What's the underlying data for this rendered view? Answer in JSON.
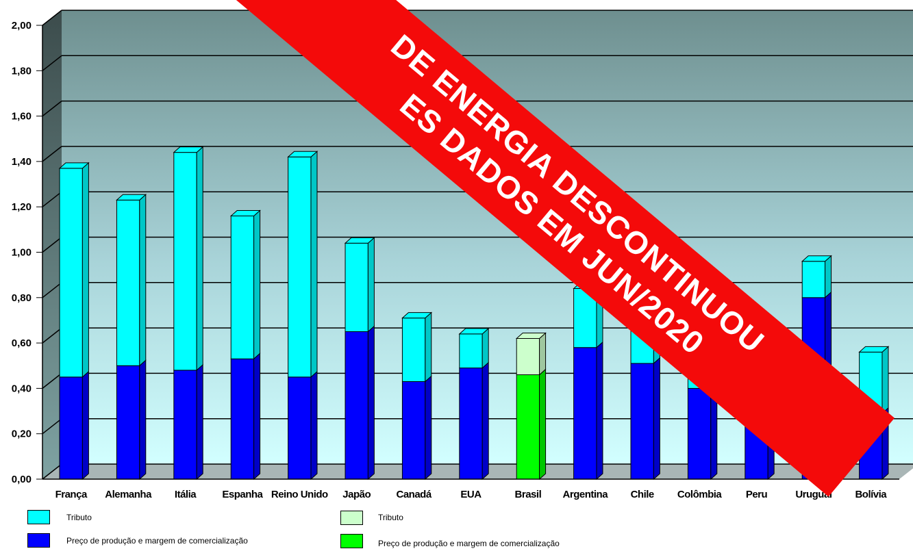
{
  "chart_data": {
    "type": "bar",
    "stacked": true,
    "three_d": true,
    "categories": [
      "França",
      "Alemanha",
      "Itália",
      "Espanha",
      "Reino Unido",
      "Japão",
      "Canadá",
      "EUA",
      "Brasil",
      "Argentina",
      "Chile",
      "Colômbia",
      "Peru",
      "Uruguai",
      "Bolívia"
    ],
    "series": [
      {
        "name": "Preço de produção e margem de comercialização",
        "values": [
          0.45,
          0.5,
          0.48,
          0.53,
          0.45,
          0.65,
          0.43,
          0.49,
          0.46,
          0.58,
          0.51,
          0.4,
          0.35,
          0.8,
          0.29
        ]
      },
      {
        "name": "Tributo",
        "values": [
          0.92,
          0.73,
          0.96,
          0.63,
          0.97,
          0.39,
          0.28,
          0.15,
          0.16,
          0.26,
          0.19,
          0.09,
          0.15,
          0.16,
          0.27
        ]
      }
    ],
    "highlight_category": "Brasil",
    "ylim": [
      0,
      2.0
    ],
    "yticks": [
      "0,00",
      "0,20",
      "0,40",
      "0,60",
      "0,80",
      "1,00",
      "1,20",
      "1,40",
      "1,60",
      "1,80",
      "2,00"
    ],
    "grid": true,
    "legend_position": "bottom"
  },
  "legend": {
    "group_default": [
      {
        "label": "Tributo",
        "color": "#00ffff"
      },
      {
        "label": "Preço de produção e margem de comercialização",
        "color": "#0000ff"
      }
    ],
    "group_brasil": [
      {
        "label": "Tributo",
        "color": "#ccffcc"
      },
      {
        "label": "Preço de produção e margem de comercialização",
        "color": "#00ff00"
      }
    ]
  },
  "colors": {
    "tax": "#00ffff",
    "production": "#0000ff",
    "brasil_tax": "#ccffcc",
    "brasil_production": "#00ff00",
    "banner": "#f40a0a"
  },
  "banner": {
    "line1": "DE ENERGIA DESCONTINUOU",
    "line2": "ES DADOS EM JUN/2020"
  }
}
